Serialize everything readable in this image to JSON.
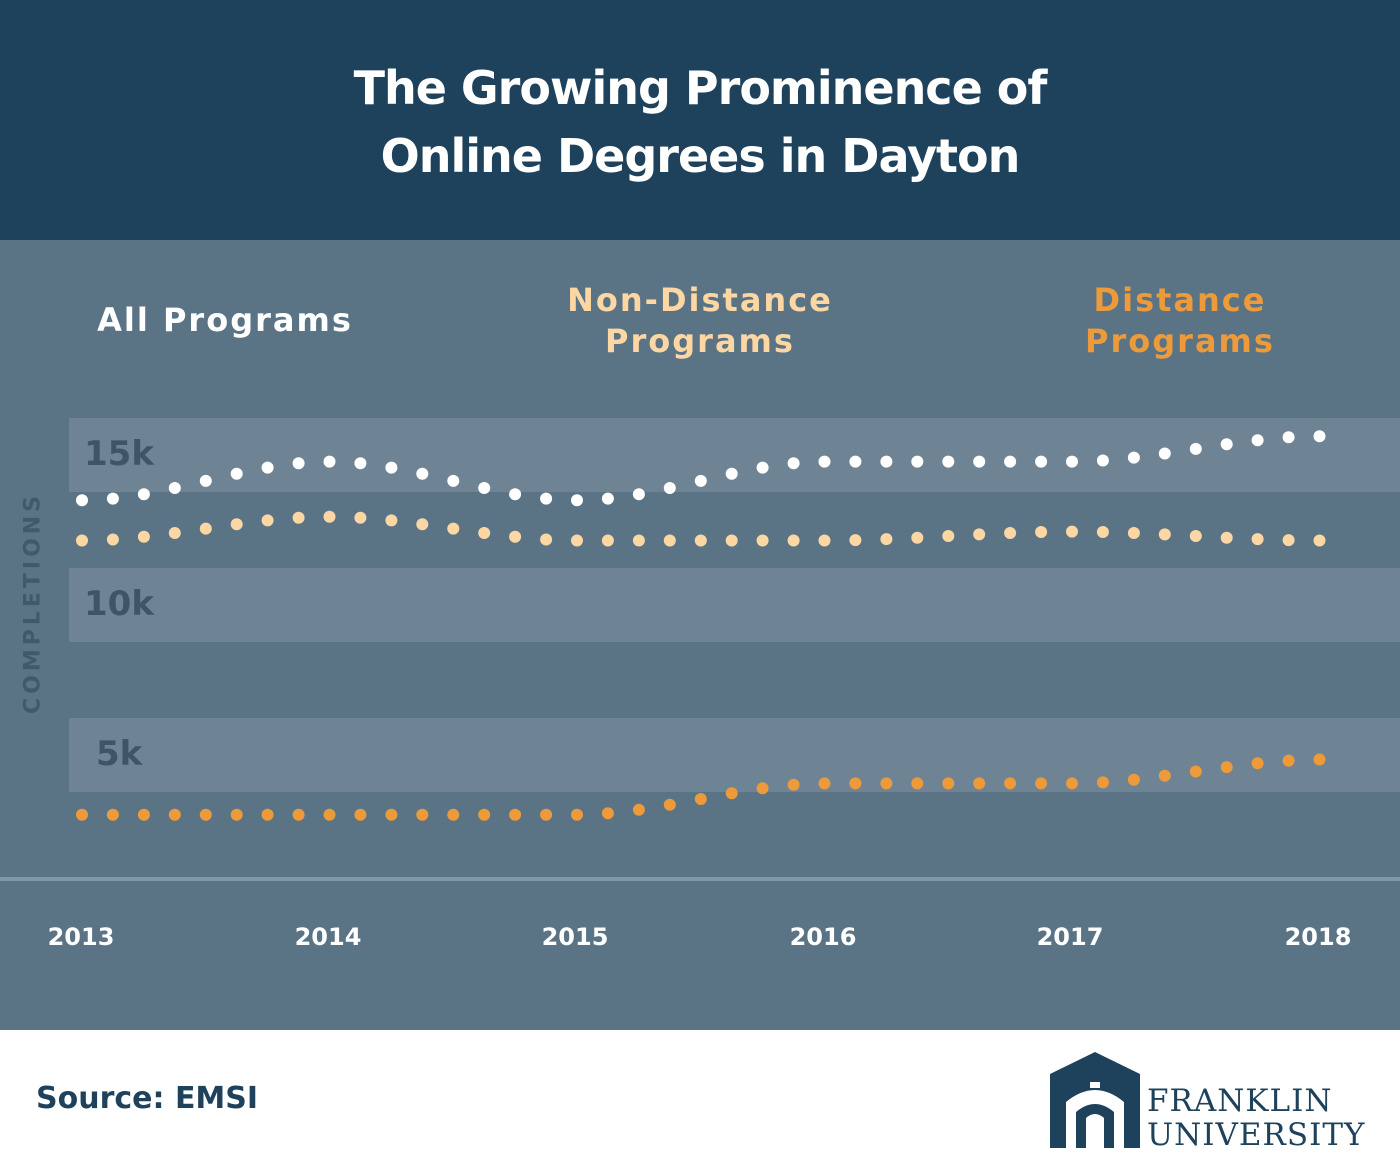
{
  "header": {
    "title_line1": "The Growing Prominence of",
    "title_line2": "Online Degrees in Dayton"
  },
  "colors": {
    "header_bg": "#1f425c",
    "chart_bg": "#5a7486",
    "all_programs": "#ffffff",
    "non_distance": "#fcd7a4",
    "distance": "#ed9a3a"
  },
  "chart_data": {
    "type": "line",
    "title": "",
    "xlabel": "",
    "ylabel": "COMPLETIONS",
    "x": [
      "2013",
      "2014",
      "2015",
      "2016",
      "2017",
      "2018"
    ],
    "ylim": [
      2900,
      16500
    ],
    "yticks": [
      {
        "value": 15000,
        "label": "15k"
      },
      {
        "value": 10000,
        "label": "10k"
      },
      {
        "value": 5000,
        "label": "5k"
      }
    ],
    "grid": true,
    "legend_position": "top",
    "series": [
      {
        "name_lines": [
          "All Programs"
        ],
        "color": "#ffffff",
        "values": [
          13950,
          15250,
          13950,
          15250,
          15250,
          16100
        ]
      },
      {
        "name_lines": [
          "Non-Distance",
          "Programs"
        ],
        "color": "#fcd7a4",
        "values": [
          12600,
          13400,
          12600,
          12600,
          12900,
          12600
        ]
      },
      {
        "name_lines": [
          "Distance",
          "Programs"
        ],
        "color": "#ed9a3a",
        "values": [
          3400,
          3400,
          3400,
          4450,
          4450,
          5250
        ]
      }
    ]
  },
  "footer": {
    "source": "Source: EMSI",
    "logo_line1": "FRANKLIN",
    "logo_line2": "UNIVERSITY"
  }
}
